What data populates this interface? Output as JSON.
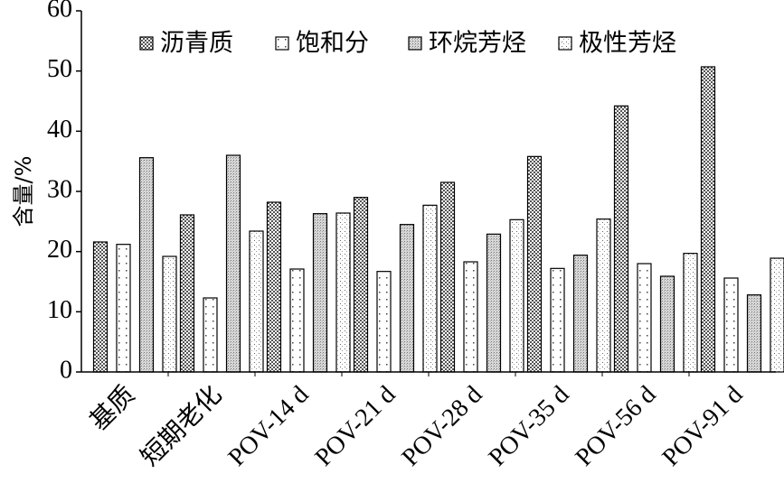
{
  "chart_data": {
    "type": "bar",
    "ylabel": "含量/%",
    "ylim": [
      0,
      60
    ],
    "yticks": [
      0,
      10,
      20,
      30,
      40,
      50,
      60
    ],
    "grid": false,
    "legend_position": "top",
    "categories": [
      "基质",
      "短期老化",
      "POV-14 d",
      "POV-21 d",
      "POV-28 d",
      "POV-35 d",
      "POV-56 d",
      "POV-91 d"
    ],
    "series": [
      {
        "name": "沥青质",
        "pattern": "checker-dense",
        "values": [
          21.6,
          26.1,
          28.2,
          29.0,
          31.5,
          35.8,
          44.2,
          50.7
        ]
      },
      {
        "name": "饱和分",
        "pattern": "dots-sparse",
        "values": [
          21.2,
          12.3,
          17.1,
          16.7,
          18.3,
          17.2,
          18.0,
          15.6
        ]
      },
      {
        "name": "环烷芳烃",
        "pattern": "fine-grid",
        "values": [
          35.6,
          36.0,
          26.3,
          24.5,
          22.9,
          19.4,
          15.9,
          12.8
        ]
      },
      {
        "name": "极性芳烃",
        "pattern": "dots-fine",
        "values": [
          19.2,
          23.4,
          26.4,
          27.7,
          25.3,
          25.4,
          19.7,
          18.9
        ]
      }
    ]
  }
}
